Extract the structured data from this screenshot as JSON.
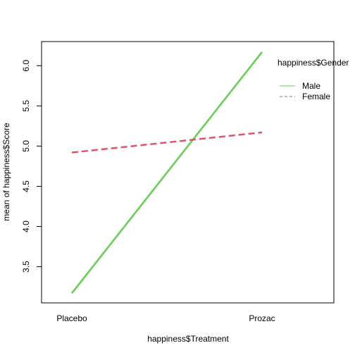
{
  "chart_data": {
    "type": "line",
    "title": "",
    "xlabel": "happiness$Treatment",
    "ylabel": "mean of happiness$Score",
    "categories": [
      "Placebo",
      "Prozac"
    ],
    "ylim": [
      3.05,
      6.3
    ],
    "yticks": [
      "3.5",
      "4.0",
      "4.5",
      "5.0",
      "5.5",
      "6.0"
    ],
    "grid": false,
    "legend": {
      "title": "happiness$Gender",
      "placement": "top-right"
    },
    "series": [
      {
        "name": "Male",
        "values": [
          3.17,
          6.17
        ],
        "color": "#61d04f",
        "dash": "solid"
      },
      {
        "name": "Female",
        "values": [
          4.92,
          5.17
        ],
        "color": "#df536b",
        "dash": "dashed"
      }
    ]
  }
}
